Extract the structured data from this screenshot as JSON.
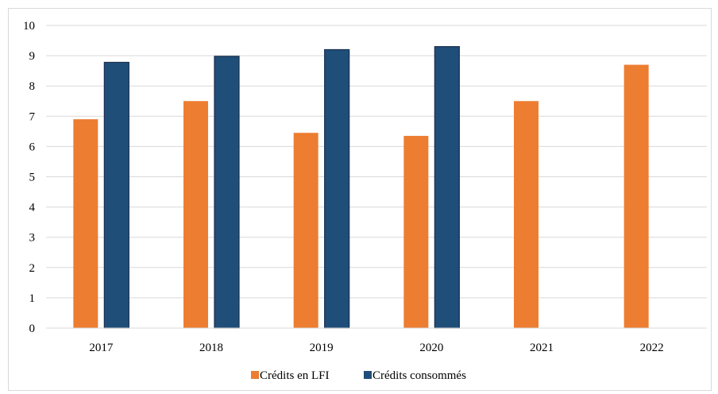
{
  "chart_data": {
    "type": "bar",
    "title": "",
    "xlabel": "",
    "ylabel": "",
    "categories": [
      "2017",
      "2018",
      "2019",
      "2020",
      "2021",
      "2022"
    ],
    "series": [
      {
        "name": "Crédits en LFI",
        "color": "#ed7d31",
        "values": [
          6.9,
          7.5,
          6.45,
          6.35,
          7.5,
          8.7
        ]
      },
      {
        "name": "Crédits consommés",
        "color": "#1f4e79",
        "values": [
          8.78,
          8.98,
          9.2,
          9.3,
          null,
          null
        ]
      }
    ],
    "ylim": [
      0,
      10
    ],
    "yticks": [
      "0",
      "1",
      "2",
      "3",
      "4",
      "5",
      "6",
      "7",
      "8",
      "9",
      "10"
    ],
    "grid": true,
    "legend_position": "bottom"
  }
}
